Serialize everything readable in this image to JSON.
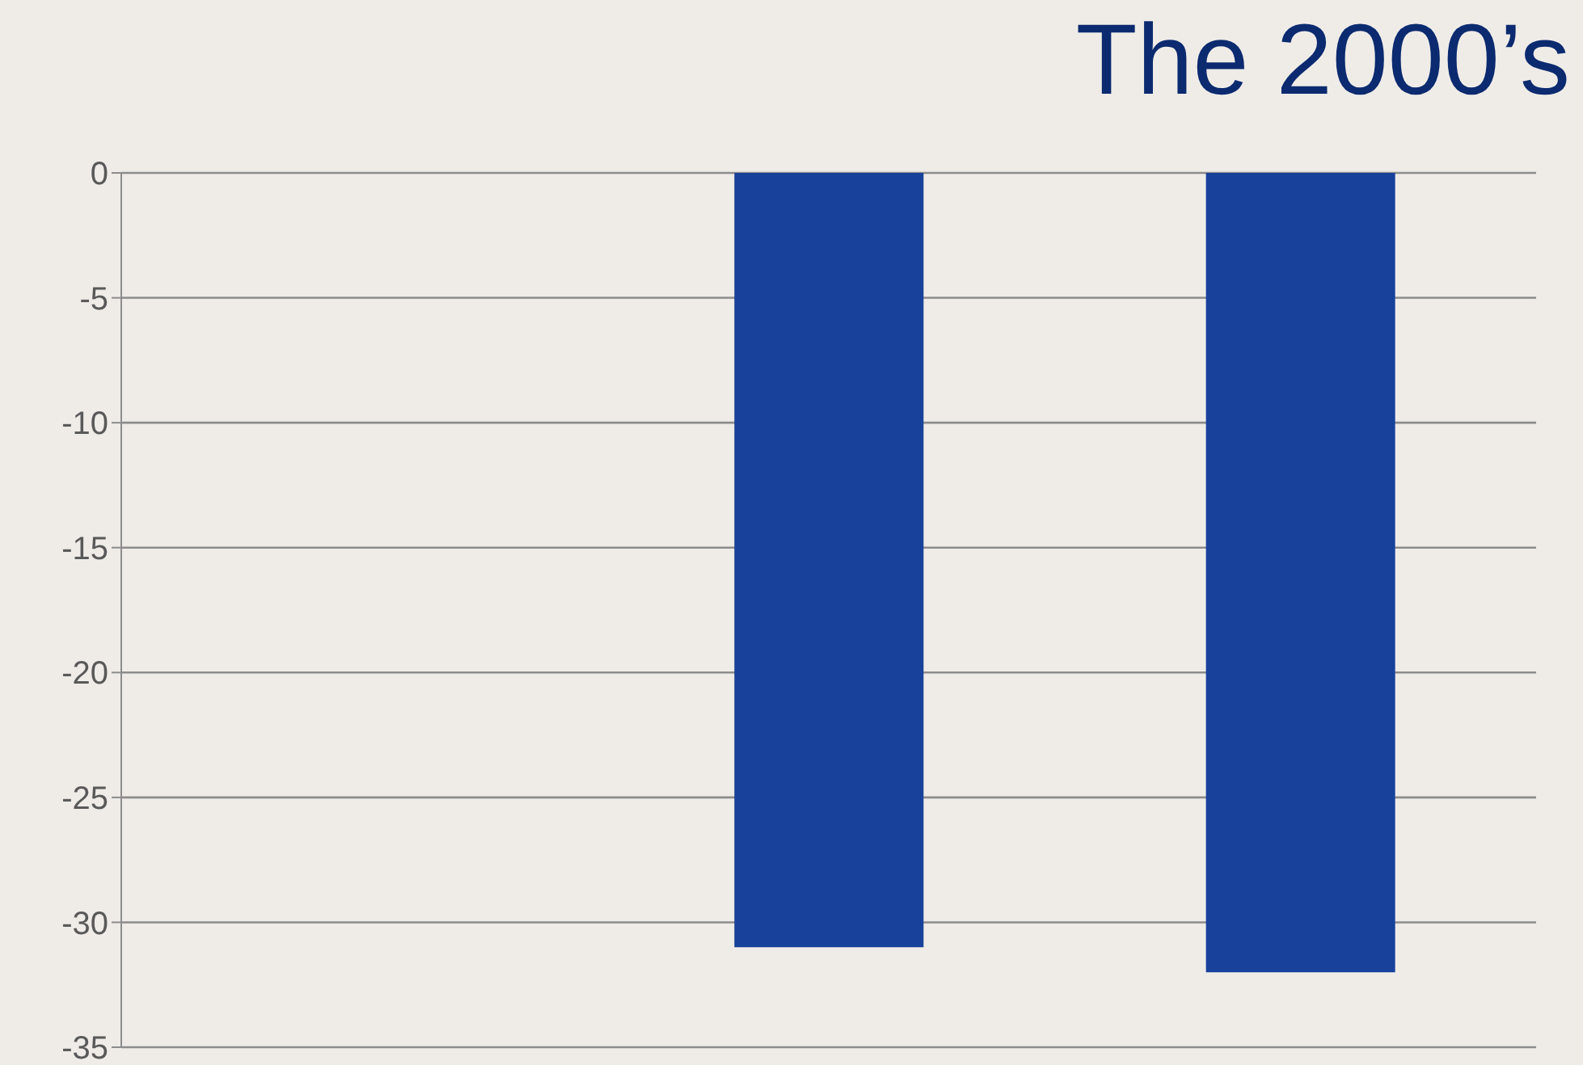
{
  "chart_data": {
    "type": "bar",
    "title": "The 2000’s",
    "categories": [
      null,
      null,
      null
    ],
    "series": [
      {
        "color": "#17419a",
        "values": [
          null,
          -31,
          -32
        ]
      }
    ],
    "ylim": [
      -35,
      0
    ],
    "yticks": [
      -35,
      -30,
      -25,
      -20,
      -15,
      -10,
      -5,
      0
    ],
    "grid": "y"
  }
}
